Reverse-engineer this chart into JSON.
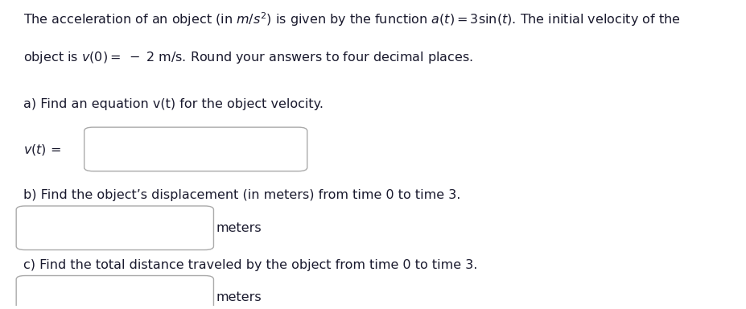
{
  "bg_color": "#ffffff",
  "text_color": "#1a1a2e",
  "font_size": 11.5,
  "line1": "The acceleration of an object (in $m/s^2$) is given by the function $a(t) = 3\\sin(t)$. The initial velocity of the",
  "line2": "object is $v(0) =\\; -\\; 2$ m/s. Round your answers to four decimal places.",
  "part_a": "a) Find an equation v(t) for the object velocity.",
  "part_b": "b) Find the object’s displacement (in meters) from time 0 to time 3.",
  "part_c": "c) Find the total distance traveled by the object from time 0 to time 3.",
  "vt_label": "$v(t)$ =",
  "meters": "meters",
  "box_color": "#cccccc",
  "box_face": "#ffffff"
}
